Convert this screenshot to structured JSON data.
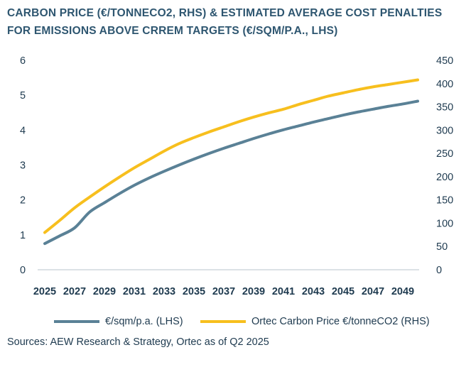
{
  "title": "CARBON PRICE (€/TONNECO2, RHS) & ESTIMATED AVERAGE COST PENALTIES FOR EMISSIONS ABOVE CRREM TARGETS (€/SQM/P.A., LHS)",
  "source": "Sources: AEW Research & Strategy, Ortec as of Q2 2025",
  "colors": {
    "lhs_series": "#5a8196",
    "rhs_series": "#f7bf1e",
    "axis": "#b8c4cc",
    "text": "#1e3a4f",
    "title": "#2e5670"
  },
  "chart_data": {
    "type": "line",
    "title": "CARBON PRICE (€/TONNECO2, RHS) & ESTIMATED AVERAGE COST PENALTIES FOR EMISSIONS ABOVE CRREM TARGETS (€/SQM/P.A., LHS)",
    "x": [
      2025,
      2026,
      2027,
      2028,
      2029,
      2030,
      2031,
      2032,
      2033,
      2034,
      2035,
      2036,
      2037,
      2038,
      2039,
      2040,
      2041,
      2042,
      2043,
      2044,
      2045,
      2046,
      2047,
      2048,
      2049,
      2050
    ],
    "x_tick_labels": [
      "2025",
      "2027",
      "2029",
      "2031",
      "2033",
      "2035",
      "2037",
      "2039",
      "2041",
      "2043",
      "2045",
      "2047",
      "2049"
    ],
    "y_left": {
      "ylim": [
        0,
        6
      ],
      "ticks": [
        "0",
        "1",
        "2",
        "3",
        "4",
        "5",
        "6"
      ]
    },
    "y_right": {
      "ylim": [
        0,
        450
      ],
      "ticks": [
        "0",
        "50",
        "100",
        "150",
        "200",
        "250",
        "300",
        "350",
        "400",
        "450"
      ]
    },
    "series": [
      {
        "name": "€/sqm/p.a. (LHS)",
        "axis": "left",
        "values": [
          0.75,
          0.97,
          1.2,
          1.65,
          1.92,
          2.18,
          2.42,
          2.63,
          2.82,
          3.0,
          3.17,
          3.33,
          3.48,
          3.62,
          3.76,
          3.89,
          4.01,
          4.12,
          4.23,
          4.33,
          4.43,
          4.52,
          4.6,
          4.68,
          4.75,
          4.83
        ]
      },
      {
        "name": "Ortec Carbon Price €/tonneCO2 (RHS)",
        "axis": "right",
        "values": [
          80,
          106,
          133,
          156,
          178,
          199,
          219,
          237,
          255,
          271,
          284,
          296,
          307,
          318,
          328,
          337,
          345,
          355,
          364,
          373,
          380,
          387,
          393,
          398,
          403,
          408
        ]
      }
    ],
    "legend": "bottom",
    "grid": false
  }
}
